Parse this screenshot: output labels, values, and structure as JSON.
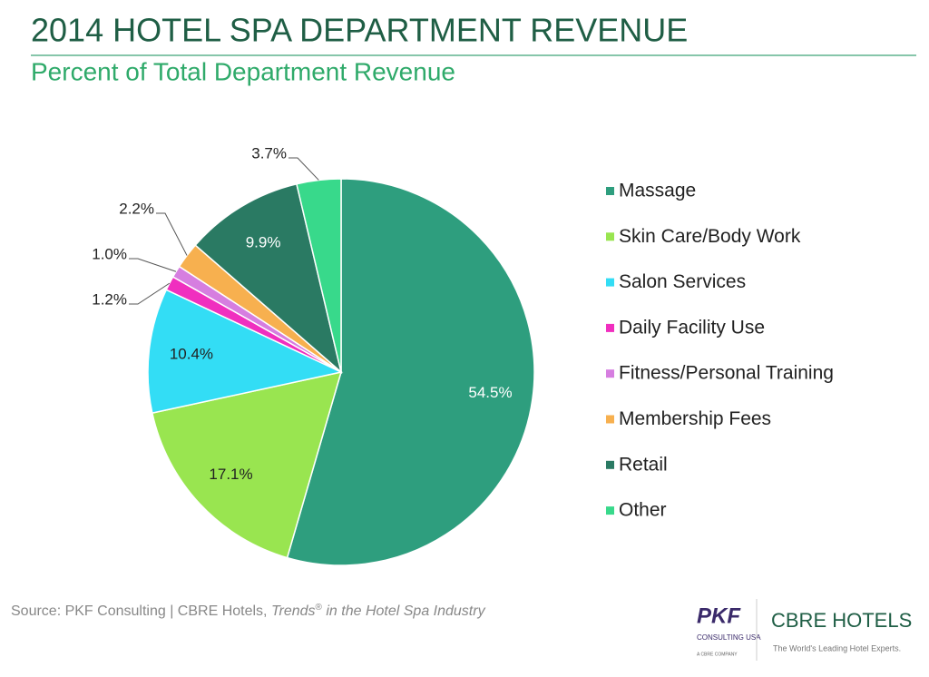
{
  "chart_data": {
    "type": "pie",
    "title": "2014 HOTEL SPA DEPARTMENT REVENUE",
    "subtitle": "Percent of Total Department Revenue",
    "categories": [
      "Massage",
      "Skin Care/Body Work",
      "Salon Services",
      "Daily Facility Use",
      "Fitness/Personal Training",
      "Membership Fees",
      "Retail",
      "Other"
    ],
    "values": [
      54.5,
      17.1,
      10.4,
      1.2,
      1.0,
      2.2,
      9.9,
      3.7
    ],
    "value_labels": [
      "54.5%",
      "17.1%",
      "10.4%",
      "1.2%",
      "1.0%",
      "2.2%",
      "9.9%",
      "3.7%"
    ],
    "colors": [
      "#2e9e7e",
      "#99e550",
      "#33ddf5",
      "#f02fbf",
      "#d67ee0",
      "#f7b04f",
      "#2a7a63",
      "#38d98b"
    ],
    "legend": "right",
    "source": [
      "Source: PKF Consulting | CBRE Hotels, ",
      "Trends",
      "®",
      " in the Hotel Spa Industry"
    ]
  },
  "logos": {
    "pkf": "PKF",
    "pkf_sub": "CONSULTING USA",
    "pkf_note": "A CBRE COMPANY",
    "cbre": "CBRE HOTELS",
    "cbre_tagline": "The World's Leading Hotel Experts."
  }
}
